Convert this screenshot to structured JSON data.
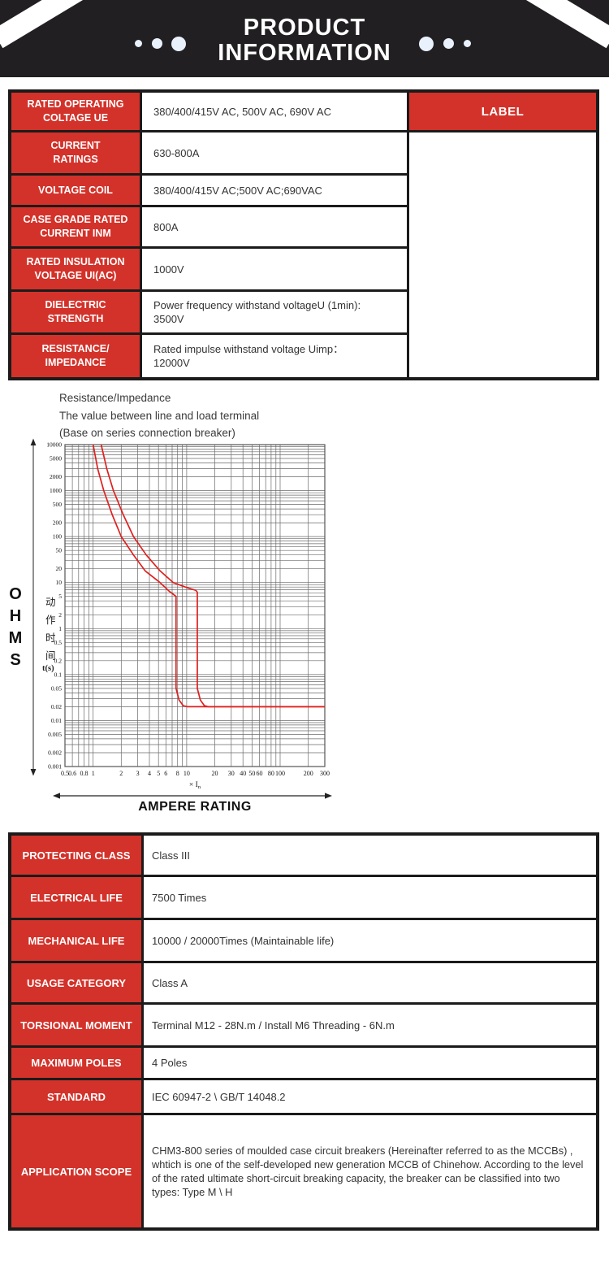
{
  "header": {
    "title_line1": "PRODUCT",
    "title_line2": "INFORMATION"
  },
  "colors": {
    "accent_red": "#d3322a",
    "banner_black": "#211f21",
    "curve_red": "#e01f1f",
    "grid_gray": "#6a6a6a"
  },
  "spec_table": {
    "label_header": "LABEL",
    "rows": [
      {
        "label": "RATED OPERATING\nCOLTAGE UE",
        "value": "380/400/415V AC, 500V AC, 690V AC"
      },
      {
        "label": "CURRENT\nRATINGS",
        "value": "630-800A"
      },
      {
        "label": "VOLTAGE COIL",
        "value": "380/400/415V AC;500V AC;690VAC"
      },
      {
        "label": "CASE GRADE RATED\nCURRENT INM",
        "value": "800A"
      },
      {
        "label": "RATED INSULATION\nVOLTAGE UI(AC)",
        "value": "1000V"
      },
      {
        "label": "DIELECTRIC\nSTRENGTH",
        "value": "Power frequency withstand voltageU (1min):\n3500V"
      },
      {
        "label": "RESISTANCE/\nIMPEDANCE",
        "value": "Rated impulse withstand voltage Uimp：\n12000V"
      }
    ]
  },
  "chart_section": {
    "intro_lines": [
      "Resistance/Impedance",
      "The value between line and load terminal",
      "(Base on series connection breaker)"
    ],
    "y_outer_label": "OHMS",
    "x_outer_label": "AMPERE RATING"
  },
  "chart_data": {
    "type": "line",
    "title": "Resistance/Impedance trip curve (Base on series connection breaker)",
    "xlabel": "× In",
    "ylabel_cn": "动作时间",
    "ylabel_unit": "t(s)",
    "x_scale": "log",
    "y_scale": "log",
    "xlim": [
      0.5,
      300
    ],
    "ylim": [
      0.001,
      10000
    ],
    "grid": true,
    "x_ticks": [
      0.5,
      0.6,
      0.8,
      1,
      2,
      3,
      4,
      5,
      6,
      8,
      10,
      20,
      30,
      40,
      50,
      60,
      80,
      100,
      200,
      300
    ],
    "y_ticks": [
      10000,
      5000,
      2000,
      1000,
      500,
      200,
      100,
      50,
      20,
      10,
      5,
      2,
      1,
      0.5,
      0.2,
      0.1,
      0.05,
      0.02,
      0.01,
      0.005,
      0.002,
      0.001
    ],
    "series": [
      {
        "name": "trip-curve-min",
        "color": "#e01f1f",
        "points": [
          [
            1.0,
            10000
          ],
          [
            1.12,
            3000
          ],
          [
            1.3,
            1000
          ],
          [
            1.6,
            300
          ],
          [
            2.0,
            100
          ],
          [
            2.7,
            40
          ],
          [
            3.6,
            18
          ],
          [
            5.2,
            10
          ],
          [
            6.5,
            6.5
          ],
          [
            7.7,
            5
          ],
          [
            7.7,
            0.05
          ],
          [
            8.3,
            0.028
          ],
          [
            9.2,
            0.021
          ],
          [
            10.2,
            0.02
          ],
          [
            300,
            0.02
          ]
        ]
      },
      {
        "name": "trip-curve-max",
        "color": "#e01f1f",
        "points": [
          [
            1.22,
            10000
          ],
          [
            1.4,
            3000
          ],
          [
            1.65,
            1000
          ],
          [
            2.1,
            300
          ],
          [
            2.7,
            100
          ],
          [
            3.7,
            40
          ],
          [
            5.2,
            18
          ],
          [
            7.2,
            10
          ],
          [
            10,
            7.8
          ],
          [
            12.5,
            6.8
          ],
          [
            13,
            6.2
          ],
          [
            13,
            0.05
          ],
          [
            14,
            0.028
          ],
          [
            15.5,
            0.021
          ],
          [
            17,
            0.02
          ],
          [
            300,
            0.02
          ]
        ]
      }
    ]
  },
  "detail_table": {
    "rows": [
      {
        "label": "PROTECTING CLASS",
        "value": "Class III"
      },
      {
        "label": "ELECTRICAL LIFE",
        "value": "7500 Times"
      },
      {
        "label": "MECHANICAL LIFE",
        "value": "10000 / 20000Times  (Maintainable life)"
      },
      {
        "label": "USAGE CATEGORY",
        "value": "Class A"
      },
      {
        "label": "TORSIONAL MOMENT",
        "value": "Terminal M12 - 28N.m / Install M6 Threading - 6N.m"
      },
      {
        "label": "MAXIMUM POLES",
        "value": "4 Poles"
      },
      {
        "label": "STANDARD",
        "value": "IEC 60947-2 \\ GB/T 14048.2"
      },
      {
        "label": "APPLICATION SCOPE",
        "value": "CHM3-800 series of moulded case circuit breakers (Hereinafter referred to as the MCCBs) , whtich is one of the self-developed new generation MCCB of Chinehow. According to the level of the rated ultimate short-circuit breaking capacity, the breaker can be classified into two types: Type M \\ H"
      }
    ]
  }
}
